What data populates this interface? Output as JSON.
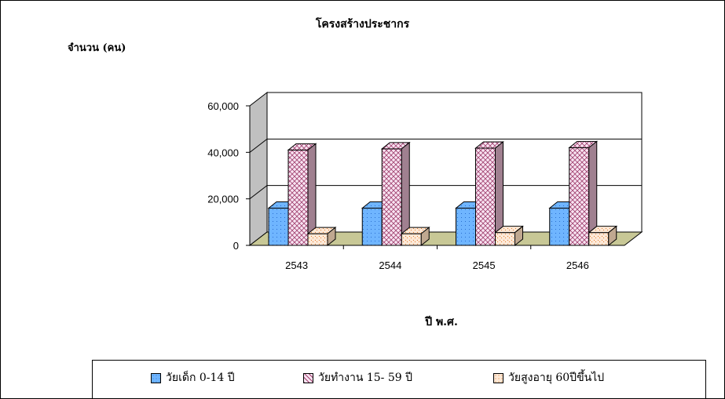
{
  "chart_data": {
    "type": "bar",
    "style": "3d-clustered-column",
    "title": "โครงสร้างประชากร",
    "ylabel": "จำนวน (คน)",
    "xlabel": "ปี พ.ศ.",
    "categories": [
      "2543",
      "2544",
      "2545",
      "2546"
    ],
    "ylim": [
      0,
      60000
    ],
    "yticks": [
      "0",
      "20,000",
      "40,000",
      "60,000"
    ],
    "grid": true,
    "legend_position": "bottom",
    "series": [
      {
        "name": "วัยเด็ก 0-14  ปี",
        "values": [
          16000,
          16000,
          16000,
          16000
        ],
        "color": "#6fb5ff"
      },
      {
        "name": "วัยทำงาน 15- 59 ปี",
        "values": [
          41000,
          41500,
          41800,
          42000
        ],
        "color": "#f6dcef"
      },
      {
        "name": "วัยสูงอายุ 60ปีขึ้นไป",
        "values": [
          5000,
          5000,
          5500,
          5500
        ],
        "color": "#fce6d2"
      }
    ],
    "floor_color": "#c8c896",
    "wall_color": "#c0c0c0"
  }
}
